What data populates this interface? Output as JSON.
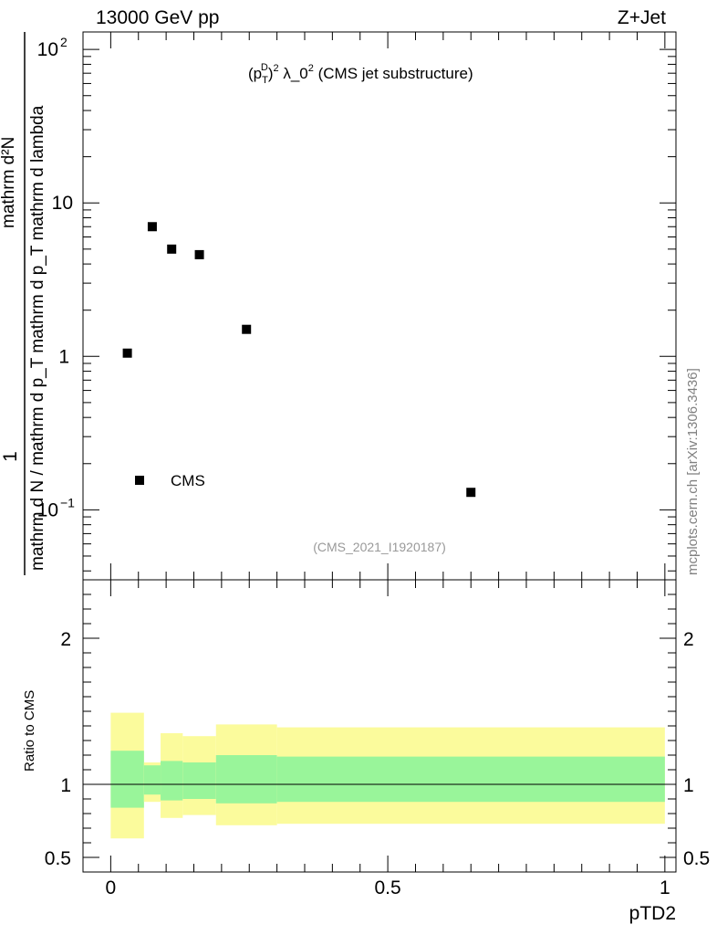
{
  "header": {
    "left": "13000 GeV pp",
    "right": "Z+Jet"
  },
  "side_label": "mcplots.cern.ch [arXiv:1306.3436]",
  "chart_data": [
    {
      "type": "scatter",
      "panel": "main",
      "title": "(p_T^D)^2 λ_0^2 (CMS jet substructure)",
      "title_parts": {
        "p1": "(p",
        "sub": "T",
        "sup": "D",
        "p2": ")",
        "sq": "2",
        "p3": " λ_0",
        "sq2": "2",
        "p4": " (CMS jet substructure)"
      },
      "ylabel": {
        "numerator": "1",
        "denominator": "mathrm d N / mathrm d p_T mathrm d p_T mathrm d lambda",
        "extra": "mathrm d²N"
      },
      "yscale": "log",
      "ylim": [
        0.035,
        130
      ],
      "xlim": [
        -0.05,
        1.02
      ],
      "y_ticks": [
        {
          "value": 0.1,
          "label": "10",
          "exp": "−1"
        },
        {
          "value": 1,
          "label": "1",
          "exp": ""
        },
        {
          "value": 10,
          "label": "10",
          "exp": ""
        },
        {
          "value": 100,
          "label": "10",
          "exp": "2"
        }
      ],
      "series": [
        {
          "name": "CMS",
          "marker": "square",
          "points": [
            {
              "x": 0.03,
              "y": 1.05
            },
            {
              "x": 0.075,
              "y": 7.0
            },
            {
              "x": 0.11,
              "y": 5.0
            },
            {
              "x": 0.16,
              "y": 4.6
            },
            {
              "x": 0.245,
              "y": 1.5
            },
            {
              "x": 0.65,
              "y": 0.13
            }
          ]
        }
      ],
      "legend": {
        "label": "CMS",
        "placement": "bottom-left"
      },
      "analysis_label": "(CMS_2021_I1920187)"
    },
    {
      "type": "area",
      "panel": "ratio",
      "ylabel": "Ratio to CMS",
      "xlabel": "pTD2",
      "ylim": [
        0.4,
        2.4
      ],
      "xlim": [
        -0.05,
        1.02
      ],
      "y_ticks": [
        {
          "value": 0.5,
          "label": "0.5"
        },
        {
          "value": 1,
          "label": "1"
        },
        {
          "value": 2,
          "label": "2"
        }
      ],
      "x_ticks": [
        {
          "value": 0,
          "label": "0"
        },
        {
          "value": 0.5,
          "label": "0.5"
        },
        {
          "value": 1,
          "label": "1"
        }
      ],
      "bands": [
        {
          "x0": 0.0,
          "x1": 0.06,
          "inner": [
            0.84,
            1.23
          ],
          "outer": [
            0.63,
            1.49
          ]
        },
        {
          "x0": 0.06,
          "x1": 0.09,
          "inner": [
            0.93,
            1.13
          ],
          "outer": [
            0.88,
            1.15
          ]
        },
        {
          "x0": 0.09,
          "x1": 0.13,
          "inner": [
            0.89,
            1.16
          ],
          "outer": [
            0.77,
            1.35
          ]
        },
        {
          "x0": 0.13,
          "x1": 0.19,
          "inner": [
            0.9,
            1.15
          ],
          "outer": [
            0.79,
            1.33
          ]
        },
        {
          "x0": 0.19,
          "x1": 0.3,
          "inner": [
            0.87,
            1.2
          ],
          "outer": [
            0.72,
            1.41
          ]
        },
        {
          "x0": 0.3,
          "x1": 1.0,
          "inner": [
            0.88,
            1.19
          ],
          "outer": [
            0.73,
            1.39
          ]
        }
      ],
      "reference_line": 1,
      "colors": {
        "inner": "#99f59a",
        "outer": "#fbfb9c"
      }
    }
  ]
}
